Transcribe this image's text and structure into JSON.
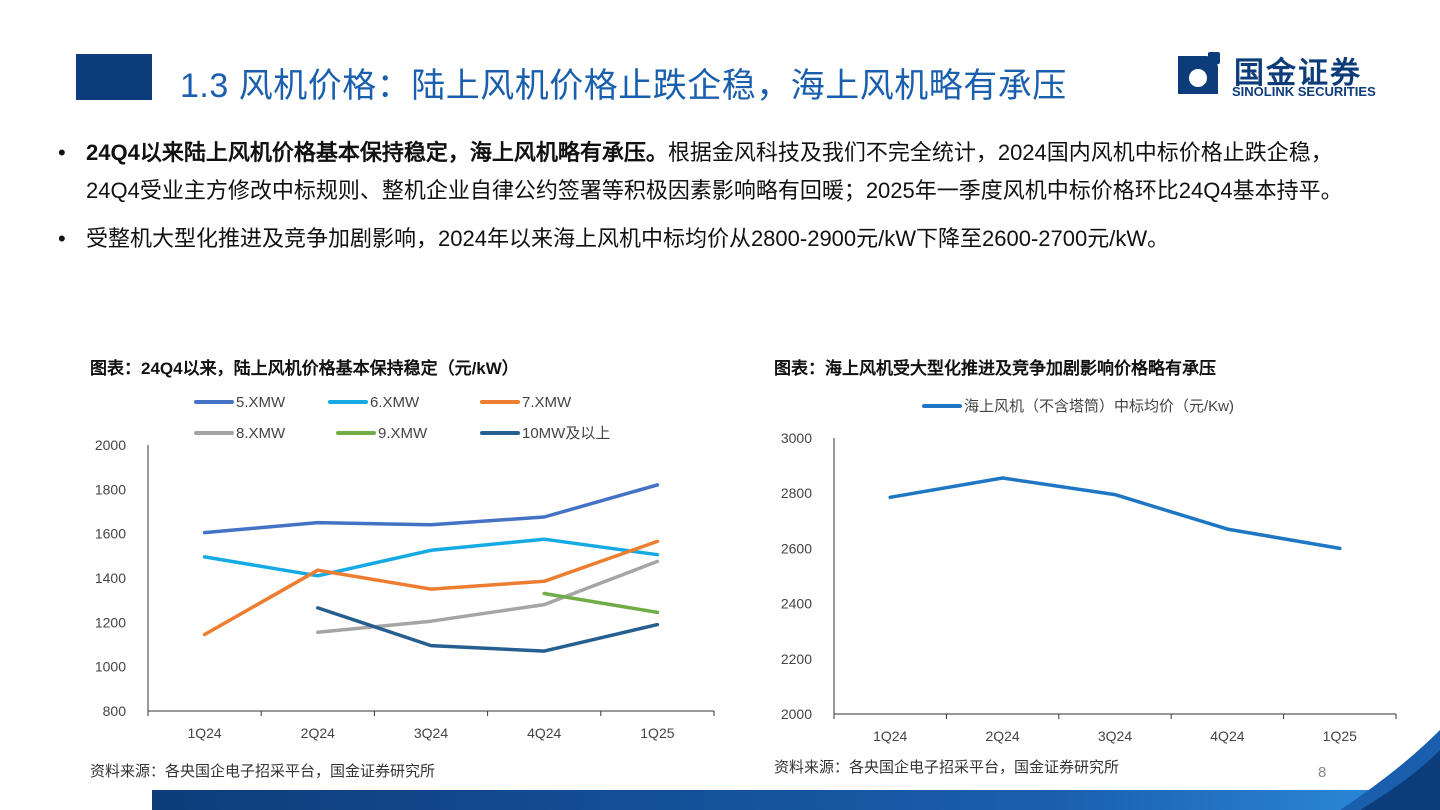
{
  "header": {
    "title": "1.3 风机价格：陆上风机价格止跌企稳，海上风机略有承压",
    "logo_cn": "国金证券",
    "logo_en": "SINOLINK SECURITIES",
    "colors": {
      "title": "#1a5fae",
      "brand": "#0d3c7a"
    }
  },
  "bullets": [
    {
      "bold": "24Q4以来陆上风机价格基本保持稳定，海上风机略有承压。",
      "text": "根据金风科技及我们不完全统计，2024国内风机中标价格止跌企稳，24Q4受业主方修改中标规则、整机企业自律公约签署等积极因素影响略有回暖；2025年一季度风机中标价格环比24Q4基本持平。"
    },
    {
      "bold": "",
      "text": "受整机大型化推进及竞争加剧影响，2024年以来海上风机中标均价从2800-2900元/kW下降至2600-2700元/kW。"
    }
  ],
  "left_chart": {
    "heading": "图表：24Q4以来，陆上风机价格基本保持稳定（元/kW）",
    "source": "资料来源：各央国企电子招采平台，国金证券研究所"
  },
  "right_chart": {
    "heading": "图表：海上风机受大型化推进及竞争加剧影响价格略有承压",
    "source": "资料来源：各央国企电子招采平台，国金证券研究所"
  },
  "page_number": "8",
  "chart_data": [
    {
      "type": "line",
      "categories": [
        "1Q24",
        "2Q24",
        "3Q24",
        "4Q24",
        "1Q25"
      ],
      "ylim": [
        800,
        2000
      ],
      "yticks": [
        800,
        1000,
        1200,
        1400,
        1600,
        1800,
        2000
      ],
      "legend_position": "top",
      "grid": false,
      "series": [
        {
          "name": "5.XMW",
          "color": "#4472c4",
          "values": [
            1605,
            1650,
            1640,
            1675,
            1820
          ]
        },
        {
          "name": "6.XMW",
          "color": "#15aae4",
          "values": [
            1495,
            1410,
            1525,
            1575,
            1505
          ]
        },
        {
          "name": "7.XMW",
          "color": "#ed7d31",
          "values": [
            1145,
            1435,
            1350,
            1385,
            1565
          ]
        },
        {
          "name": "8.XMW",
          "color": "#a5a5a5",
          "values": [
            null,
            1155,
            1205,
            1280,
            1475
          ]
        },
        {
          "name": "9.XMW",
          "color": "#70ad47",
          "values": [
            null,
            null,
            null,
            1330,
            1245
          ]
        },
        {
          "name": "10MW及以上",
          "color": "#255e91",
          "values": [
            null,
            1265,
            1095,
            1070,
            1190
          ]
        }
      ]
    },
    {
      "type": "line",
      "categories": [
        "1Q24",
        "2Q24",
        "3Q24",
        "4Q24",
        "1Q25"
      ],
      "ylim": [
        2000,
        3000
      ],
      "yticks": [
        2000,
        2200,
        2400,
        2600,
        2800,
        3000
      ],
      "legend_position": "top",
      "grid": false,
      "series": [
        {
          "name": "海上风机（不含塔筒）中标均价（元/Kw)",
          "color": "#1f77c4",
          "values": [
            2785,
            2855,
            2795,
            2670,
            2600
          ]
        }
      ]
    }
  ]
}
